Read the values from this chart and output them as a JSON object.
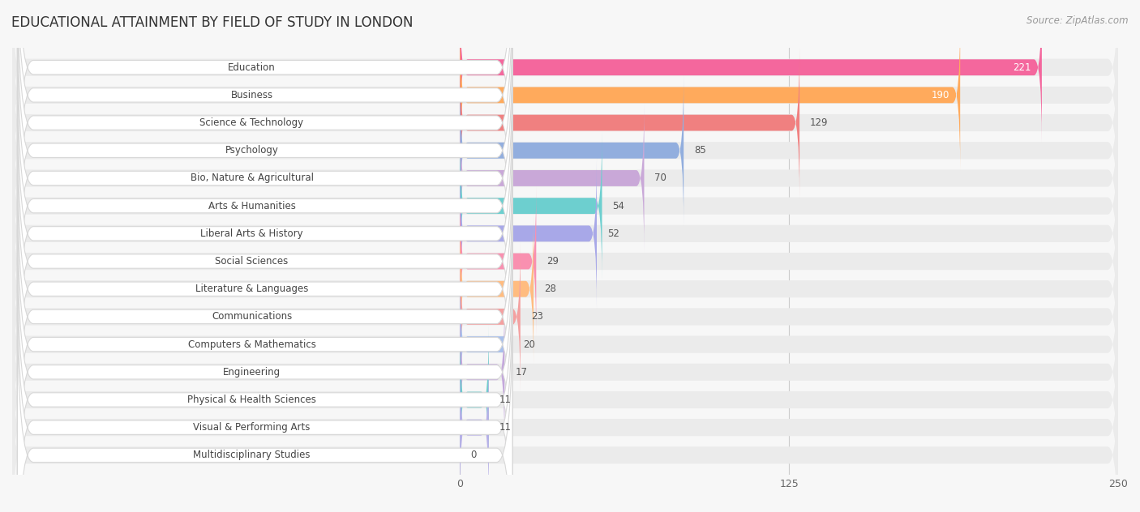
{
  "title": "EDUCATIONAL ATTAINMENT BY FIELD OF STUDY IN LONDON",
  "source": "Source: ZipAtlas.com",
  "categories": [
    "Education",
    "Business",
    "Science & Technology",
    "Psychology",
    "Bio, Nature & Agricultural",
    "Arts & Humanities",
    "Liberal Arts & History",
    "Social Sciences",
    "Literature & Languages",
    "Communications",
    "Computers & Mathematics",
    "Engineering",
    "Physical & Health Sciences",
    "Visual & Performing Arts",
    "Multidisciplinary Studies"
  ],
  "values": [
    221,
    190,
    129,
    85,
    70,
    54,
    52,
    29,
    28,
    23,
    20,
    17,
    11,
    11,
    0
  ],
  "colors": [
    "#F4679D",
    "#FFAA5C",
    "#F08080",
    "#92AEDE",
    "#C9A8D8",
    "#6DCFCF",
    "#A8A8E8",
    "#F990B0",
    "#FFBC80",
    "#F4A0A0",
    "#A8C0EC",
    "#C4A8DC",
    "#70CCCC",
    "#B8B0E8",
    "#F990B0"
  ],
  "data_max": 250,
  "xticks": [
    0,
    125,
    250
  ],
  "bg_color": "#f7f7f7",
  "row_bg_color": "#ebebeb",
  "title_fontsize": 12,
  "label_fontsize": 8.5,
  "value_fontsize": 8.5
}
